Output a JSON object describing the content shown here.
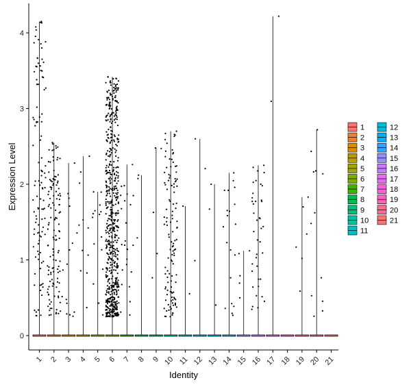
{
  "chart_data": {
    "type": "violin-jitter",
    "title": "",
    "xlabel": "Identity",
    "ylabel": "Expression Level",
    "ylim": [
      -0.2,
      4.4
    ],
    "yticks": [
      0,
      1,
      2,
      3,
      4
    ],
    "grid": false,
    "legend_position": "right",
    "categories": [
      "1",
      "2",
      "3",
      "4",
      "5",
      "6",
      "7",
      "8",
      "9",
      "10",
      "11",
      "12",
      "13",
      "14",
      "15",
      "16",
      "17",
      "18",
      "19",
      "20",
      "21"
    ],
    "colors": [
      "#F8766D",
      "#EA8331",
      "#D89000",
      "#C09B00",
      "#A3A500",
      "#7CAE00",
      "#39B600",
      "#00BB4E",
      "#00BF7D",
      "#00C1A3",
      "#00BFC4",
      "#00BAE0",
      "#00B0F6",
      "#35A2FF",
      "#9590FF",
      "#C77CFF",
      "#E76BF3",
      "#FA62DB",
      "#FF62BC",
      "#FF6C91",
      "#F8766D"
    ],
    "max_values": [
      4.15,
      2.55,
      2.28,
      2.37,
      1.9,
      3.42,
      2.26,
      2.12,
      2.48,
      2.7,
      1.71,
      2.6,
      2.0,
      2.15,
      1.12,
      2.25,
      4.22,
      0.0,
      1.83,
      2.72,
      0.0
    ],
    "nonzero_counts": [
      110,
      130,
      15,
      12,
      15,
      650,
      25,
      3,
      5,
      120,
      2,
      3,
      3,
      20,
      5,
      40,
      2,
      0,
      6,
      12,
      0
    ]
  }
}
